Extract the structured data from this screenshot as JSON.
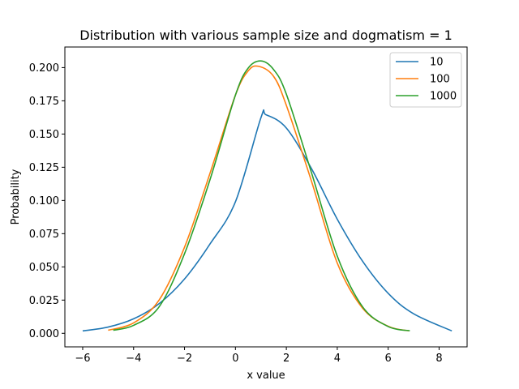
{
  "chart_data": {
    "type": "line",
    "title": "Distribution with various sample size and dogmatism = 1",
    "xlabel": "x value",
    "ylabel": "Probability",
    "xlim": [
      -6.7,
      9.1
    ],
    "ylim": [
      -0.0102,
      0.2155
    ],
    "xticks": [
      -6,
      -4,
      -2,
      0,
      2,
      4,
      6,
      8
    ],
    "xtick_labels": [
      "−6",
      "−4",
      "−2",
      "0",
      "2",
      "4",
      "6",
      "8"
    ],
    "yticks": [
      0.0,
      0.025,
      0.05,
      0.075,
      0.1,
      0.125,
      0.15,
      0.175,
      0.2
    ],
    "ytick_labels": [
      "0.000",
      "0.025",
      "0.050",
      "0.075",
      "0.100",
      "0.125",
      "0.150",
      "0.175",
      "0.200"
    ],
    "grid": false,
    "legend_position": "top-right",
    "series": [
      {
        "name": "10",
        "color": "#1f77b4",
        "x": [
          -6.0,
          -5.0,
          -4.0,
          -3.0,
          -2.0,
          -1.0,
          0.0,
          1.0,
          1.2,
          2.0,
          3.0,
          4.0,
          5.0,
          6.0,
          7.0,
          8.5
        ],
        "y": [
          0.0018,
          0.0047,
          0.0109,
          0.0223,
          0.0409,
          0.0672,
          0.099,
          0.1622,
          0.1645,
          0.1545,
          0.1235,
          0.0859,
          0.0541,
          0.0301,
          0.0147,
          0.0018
        ]
      },
      {
        "name": "100",
        "color": "#ff7f0e",
        "x": [
          -5.0,
          -4.0,
          -3.0,
          -2.0,
          -1.0,
          0.0,
          0.5,
          0.9,
          1.5,
          2.0,
          3.0,
          4.0,
          5.0,
          6.0,
          6.8
        ],
        "y": [
          0.0023,
          0.0078,
          0.025,
          0.0648,
          0.1204,
          0.1793,
          0.1975,
          0.201,
          0.1934,
          0.1716,
          0.1137,
          0.0529,
          0.0188,
          0.0053,
          0.0019
        ]
      },
      {
        "name": "1000",
        "color": "#2ca02c",
        "x": [
          -4.8,
          -4.0,
          -3.0,
          -2.0,
          -1.0,
          0.0,
          0.5,
          1.0,
          1.5,
          2.0,
          3.0,
          4.0,
          5.0,
          6.0,
          6.85
        ],
        "y": [
          0.0023,
          0.006,
          0.0199,
          0.0599,
          0.1156,
          0.1793,
          0.1996,
          0.205,
          0.1985,
          0.18,
          0.1201,
          0.0581,
          0.0198,
          0.0051,
          0.0019
        ]
      }
    ]
  }
}
